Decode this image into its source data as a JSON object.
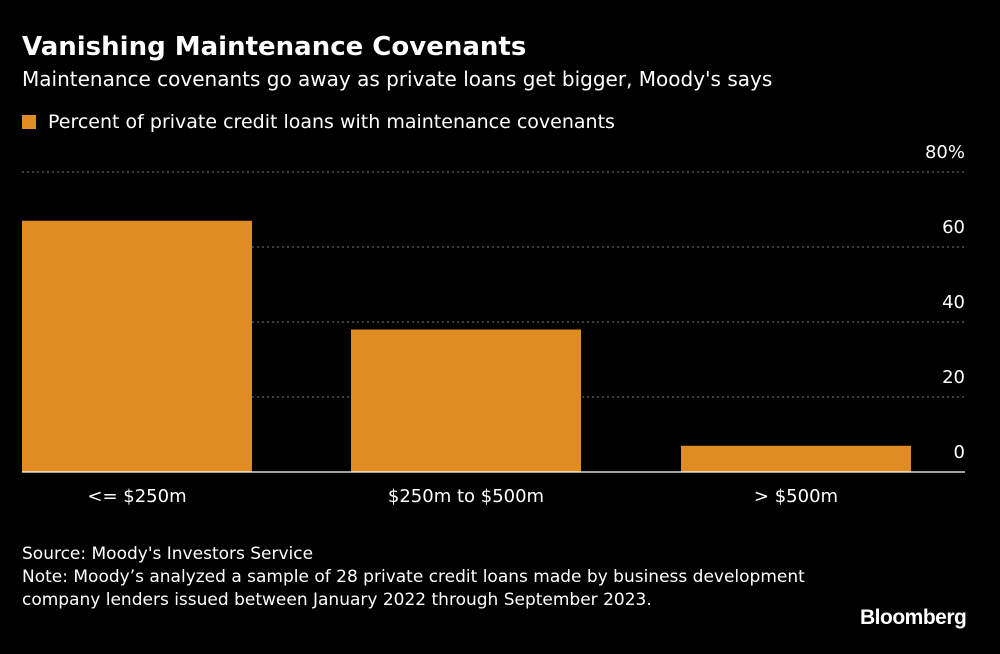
{
  "header": {
    "title": "Vanishing Maintenance Covenants",
    "subtitle": "Maintenance covenants go away as private loans get bigger, Moody's says"
  },
  "legend": {
    "label": "Percent of private credit loans with maintenance covenants"
  },
  "colors": {
    "background": "#000000",
    "bar": "#e08c25",
    "text": "#ffffff",
    "grid": "#7a7a7a"
  },
  "chart_data": {
    "type": "bar",
    "categories": [
      "<= $250m",
      "$250m to $500m",
      "> $500m"
    ],
    "series": [
      {
        "name": "Percent of private credit loans with maintenance covenants",
        "values": [
          67,
          38,
          7
        ]
      }
    ],
    "ylim": [
      0,
      80
    ],
    "yticks": [
      0,
      20,
      40,
      60,
      80
    ],
    "ytick_labels": [
      "0",
      "20",
      "40",
      "60",
      "80%"
    ],
    "grid": true,
    "y_axis_position": "right",
    "legend_position": "top-left"
  },
  "footer": {
    "source": "Source: Moody's Investors Service",
    "note": "Note: Moody’s analyzed a sample of 28 private credit loans made by business development company lenders issued between January 2022 through September 2023.",
    "brand": "Bloomberg"
  }
}
